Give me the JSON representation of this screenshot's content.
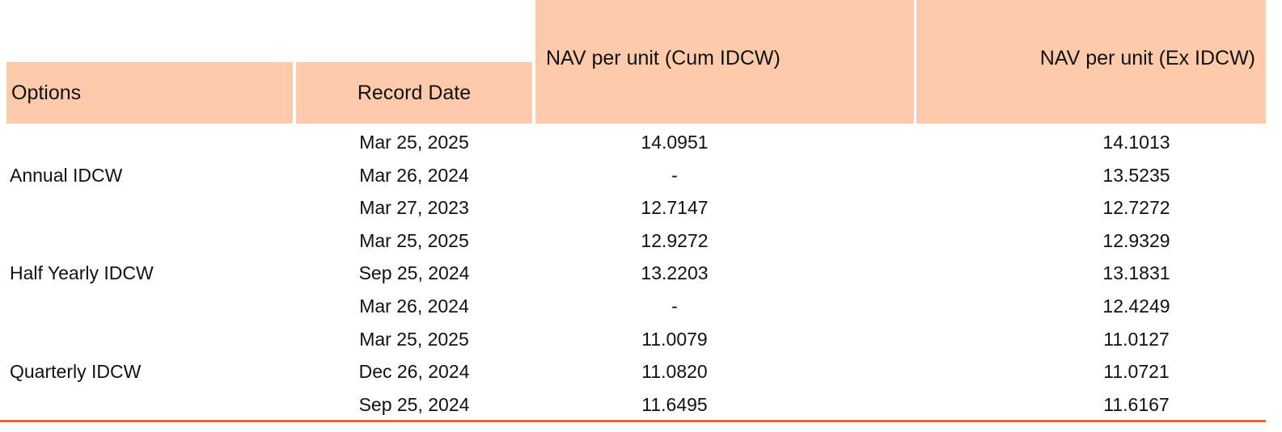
{
  "table": {
    "header": [
      "Options",
      "Record Date",
      "NAV per unit (Cum IDCW)",
      "NAV per unit (Ex IDCW)"
    ],
    "groups": [
      {
        "option": "Annual IDCW",
        "rows": [
          [
            "Mar 25, 2025",
            "14.0951",
            "14.1013"
          ],
          [
            "Mar 26, 2024",
            "-",
            "13.5235"
          ],
          [
            "Mar 27, 2023",
            "12.7147",
            "12.7272"
          ]
        ]
      },
      {
        "option": "Half Yearly IDCW",
        "rows": [
          [
            "Mar 25, 2025",
            "12.9272",
            "12.9329"
          ],
          [
            "Sep 25, 2024",
            "13.2203",
            "13.1831"
          ],
          [
            "Mar 26, 2024",
            "-",
            "12.4249"
          ]
        ]
      },
      {
        "option": "Quarterly IDCW",
        "rows": [
          [
            "Mar 25, 2025",
            "11.0079",
            "11.0127"
          ],
          [
            "Dec 26, 2024",
            "11.0820",
            "11.0721"
          ],
          [
            "Sep 25, 2024",
            "11.6495",
            "11.6167"
          ]
        ]
      }
    ]
  }
}
